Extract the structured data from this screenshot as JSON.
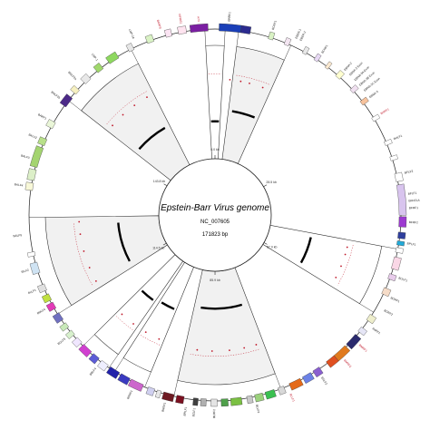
{
  "genome": {
    "title": "Epstein-Barr Virus genome",
    "accession": "NC_007605",
    "length_label": "171823 bp",
    "length_bp": 171823
  },
  "scale_ticks": [
    {
      "pos": 0,
      "label": "0.0 kb"
    },
    {
      "pos": 28500,
      "label": "28.5 kb"
    },
    {
      "pos": 57000,
      "label": "57.0 kb"
    },
    {
      "pos": 85900,
      "label": "85.9 kb"
    },
    {
      "pos": 114500,
      "label": "114.5 kb"
    },
    {
      "pos": 143800,
      "label": "143.8 kb"
    }
  ],
  "sectors": [
    {
      "start": -1500,
      "end": 1500,
      "kind": "narrow",
      "arc_level": 0.55
    },
    {
      "start": 3500,
      "end": 11500,
      "kind": "gray",
      "arc_level": 0.72
    },
    {
      "start": 48000,
      "end": 58000,
      "kind": "white",
      "arc_level": 0.62
    },
    {
      "start": 76000,
      "end": 92000,
      "kind": "gray",
      "arc_level": 0.55
    },
    {
      "start": 96500,
      "end": 101500,
      "kind": "white",
      "arc_level": 0.68
    },
    {
      "start": 102500,
      "end": 107500,
      "kind": "white",
      "arc_level": 0.72
    },
    {
      "start": 113500,
      "end": 128500,
      "kind": "gray",
      "arc_level": 0.6
    },
    {
      "start": 147000,
      "end": 159000,
      "kind": "gray",
      "arc_level": 0.65
    }
  ],
  "genes": [
    {
      "start": 600,
      "end": 3800,
      "color": "#1a3fb8"
    },
    {
      "start": 3800,
      "end": 5200,
      "color": "#2b2b8f"
    },
    {
      "start": 8000,
      "end": 8700,
      "color": "#d9f2c4"
    },
    {
      "start": 10500,
      "end": 11200,
      "color": "#f4e6f2"
    },
    {
      "start": 13500,
      "end": 14100,
      "color": "#e8e8e8"
    },
    {
      "start": 15500,
      "end": 16100,
      "color": "#e8d9f5"
    },
    {
      "start": 17500,
      "end": 18000,
      "color": "#fbe9d0"
    },
    {
      "start": 19500,
      "end": 20300,
      "color": "#ffffd0"
    },
    {
      "start": 22500,
      "end": 23200,
      "color": "#f0e0f0"
    },
    {
      "start": 24800,
      "end": 25500,
      "color": "#f7c29c"
    },
    {
      "start": 27800,
      "end": 28400,
      "color": "#ffffff"
    },
    {
      "start": 31800,
      "end": 32400,
      "color": "#ffffff"
    },
    {
      "start": 34200,
      "end": 34800,
      "color": "#ffffff"
    },
    {
      "start": 36800,
      "end": 38000,
      "color": "#ffffff"
    },
    {
      "start": 38500,
      "end": 43000,
      "color": "#d8c4ee"
    },
    {
      "start": 43200,
      "end": 44700,
      "color": "#9d3ad1"
    },
    {
      "start": 45500,
      "end": 46400,
      "color": "#2f3f9e"
    },
    {
      "start": 46800,
      "end": 47400,
      "color": "#22aad8"
    },
    {
      "start": 47800,
      "end": 48500,
      "color": "#ffffff"
    },
    {
      "start": 49200,
      "end": 51000,
      "color": "#fad7e6"
    },
    {
      "start": 51800,
      "end": 52600,
      "color": "#e8cceb"
    },
    {
      "start": 54000,
      "end": 55000,
      "color": "#f6dcc8"
    },
    {
      "start": 58500,
      "end": 59500,
      "color": "#eeeecc"
    },
    {
      "start": 60800,
      "end": 61600,
      "color": "#e6e6f6"
    },
    {
      "start": 62200,
      "end": 64200,
      "color": "#2a2a6e"
    },
    {
      "start": 64500,
      "end": 66700,
      "color": "#e07a1e"
    },
    {
      "start": 66700,
      "end": 68200,
      "color": "#e05020"
    },
    {
      "start": 69500,
      "end": 70600,
      "color": "#8a5fd0"
    },
    {
      "start": 71000,
      "end": 72400,
      "color": "#6c82e6"
    },
    {
      "start": 72800,
      "end": 74600,
      "color": "#e46a1a"
    },
    {
      "start": 75500,
      "end": 76400,
      "color": "#d8d8d8"
    },
    {
      "start": 77000,
      "end": 78400,
      "color": "#3ac050"
    },
    {
      "start": 78800,
      "end": 80000,
      "color": "#9bd17c"
    },
    {
      "start": 80400,
      "end": 81200,
      "color": "#c8c8c8"
    },
    {
      "start": 82000,
      "end": 83600,
      "color": "#7bc043"
    },
    {
      "start": 84000,
      "end": 85000,
      "color": "#4fa04a"
    },
    {
      "start": 85600,
      "end": 86500,
      "color": "#e4e4e4"
    },
    {
      "start": 87200,
      "end": 88000,
      "color": "#b0b0b0"
    },
    {
      "start": 88400,
      "end": 89100,
      "color": "#404040"
    },
    {
      "start": 90500,
      "end": 91600,
      "color": "#7a1020"
    },
    {
      "start": 92000,
      "end": 93600,
      "color": "#6e1a22"
    },
    {
      "start": 94000,
      "end": 94600,
      "color": "#e8e8e8"
    },
    {
      "start": 95000,
      "end": 96000,
      "color": "#d0d0f0"
    },
    {
      "start": 96800,
      "end": 98800,
      "color": "#cc66cc"
    },
    {
      "start": 99000,
      "end": 100500,
      "color": "#3a3ac0"
    },
    {
      "start": 100800,
      "end": 102400,
      "color": "#2222aa"
    },
    {
      "start": 102800,
      "end": 104000,
      "color": "#eeeeff"
    },
    {
      "start": 104500,
      "end": 105600,
      "color": "#5c5cd6"
    },
    {
      "start": 106000,
      "end": 107600,
      "color": "#d040d0"
    },
    {
      "start": 108000,
      "end": 109000,
      "color": "#f0e6ff"
    },
    {
      "start": 109600,
      "end": 110400,
      "color": "#d7f0cc"
    },
    {
      "start": 111000,
      "end": 111800,
      "color": "#c8e9b8"
    },
    {
      "start": 112400,
      "end": 113600,
      "color": "#7070c0"
    },
    {
      "start": 114400,
      "end": 115400,
      "color": "#e23ab8"
    },
    {
      "start": 115800,
      "end": 116800,
      "color": "#c0e040"
    },
    {
      "start": 117400,
      "end": 118400,
      "color": "#e0e0e0"
    },
    {
      "start": 120200,
      "end": 121800,
      "color": "#cfe3f3"
    },
    {
      "start": 122800,
      "end": 123400,
      "color": "#ffffff"
    },
    {
      "start": 132500,
      "end": 133600,
      "color": "#f8f8d8"
    },
    {
      "start": 134000,
      "end": 135600,
      "color": "#dcefc8"
    },
    {
      "start": 136000,
      "end": 139000,
      "color": "#a4d470"
    },
    {
      "start": 139400,
      "end": 140400,
      "color": "#b8e08a"
    },
    {
      "start": 142200,
      "end": 143200,
      "color": "#eaf6d8"
    },
    {
      "start": 146000,
      "end": 147600,
      "color": "#4c2a88"
    },
    {
      "start": 148400,
      "end": 149200,
      "color": "#f6f0c0"
    },
    {
      "start": 150500,
      "end": 151600,
      "color": "#e8e8e8"
    },
    {
      "start": 153000,
      "end": 154000,
      "color": "#a0d86c"
    },
    {
      "start": 155200,
      "end": 156800,
      "color": "#8ed860"
    },
    {
      "start": 158600,
      "end": 159400,
      "color": "#e6e6e6"
    },
    {
      "start": 161600,
      "end": 162600,
      "color": "#d9f2c4"
    },
    {
      "start": 164500,
      "end": 165400,
      "color": "#fbe4f3"
    },
    {
      "start": 166400,
      "end": 167600,
      "color": "#ffe4f0"
    },
    {
      "start": 168200,
      "end": 170800,
      "color": "#7b1fa2"
    }
  ],
  "gene_labels": [
    {
      "pos": 2000,
      "text": "BNRF1",
      "red": false
    },
    {
      "pos": 8300,
      "text": "BCRF1",
      "red": false
    },
    {
      "pos": 11800,
      "text": "EBER-1",
      "red": false
    },
    {
      "pos": 12500,
      "text": "EBER-2",
      "red": false
    },
    {
      "pos": 16000,
      "text": "BCRF1",
      "red": false
    },
    {
      "pos": 20000,
      "text": "EBNA-2",
      "red": false
    },
    {
      "pos": 21000,
      "text": "EBNA-2 Exon",
      "red": false
    },
    {
      "pos": 22000,
      "text": "EBNA-3A Exon",
      "red": false
    },
    {
      "pos": 23000,
      "text": "EBNA-3B Exon",
      "red": false
    },
    {
      "pos": 24000,
      "text": "EBNA-3C Exon",
      "red": false
    },
    {
      "pos": 25200,
      "text": "EBNA-3",
      "red": false
    },
    {
      "pos": 28000,
      "text": "BHRF1",
      "red": true
    },
    {
      "pos": 32000,
      "text": "BHLF1",
      "red": false
    },
    {
      "pos": 37000,
      "text": "BFLF2",
      "red": false
    },
    {
      "pos": 40000,
      "text": "BFLF1",
      "red": false
    },
    {
      "pos": 41000,
      "text": "BFRF1A",
      "red": false
    },
    {
      "pos": 42000,
      "text": "BFRF1",
      "red": false
    },
    {
      "pos": 44000,
      "text": "BFRF2",
      "red": false
    },
    {
      "pos": 47000,
      "text": "BPLF1",
      "red": false
    },
    {
      "pos": 52000,
      "text": "BOLF1",
      "red": false
    },
    {
      "pos": 55000,
      "text": "BORF1",
      "red": false
    },
    {
      "pos": 57000,
      "text": "BORF2",
      "red": false
    },
    {
      "pos": 60000,
      "text": "BaRF1",
      "red": false
    },
    {
      "pos": 63000,
      "text": "BMRF1",
      "red": true
    },
    {
      "pos": 66000,
      "text": "BMRF2",
      "red": true
    },
    {
      "pos": 70000,
      "text": "BSLF2",
      "red": false
    },
    {
      "pos": 75000,
      "text": "BLLF1",
      "red": true
    },
    {
      "pos": 80000,
      "text": "BLLF3",
      "red": false
    },
    {
      "pos": 86000,
      "text": "BLRF2",
      "red": false
    },
    {
      "pos": 88800,
      "text": "BZLF1",
      "red": false
    },
    {
      "pos": 90000,
      "text": "BRLF1",
      "red": false
    },
    {
      "pos": 93000,
      "text": "BRRF1",
      "red": false
    },
    {
      "pos": 98000,
      "text": "BKRF1",
      "red": false
    },
    {
      "pos": 104000,
      "text": "BBLF4",
      "red": false
    },
    {
      "pos": 110000,
      "text": "BGLF5",
      "red": false
    },
    {
      "pos": 115000,
      "text": "BDLF4",
      "red": false
    },
    {
      "pos": 118000,
      "text": "BcLF1",
      "red": false
    },
    {
      "pos": 121000,
      "text": "BILF2",
      "red": false
    },
    {
      "pos": 126000,
      "text": "BALF5",
      "red": false
    },
    {
      "pos": 133000,
      "text": "BALF4",
      "red": false
    },
    {
      "pos": 137000,
      "text": "BALF3",
      "red": false
    },
    {
      "pos": 140000,
      "text": "BALF2",
      "red": false
    },
    {
      "pos": 143000,
      "text": "BARF1",
      "red": false
    },
    {
      "pos": 146500,
      "text": "BNLF2b",
      "red": false
    },
    {
      "pos": 150000,
      "text": "BNLF2a",
      "red": false
    },
    {
      "pos": 154000,
      "text": "LMP-1",
      "red": false
    },
    {
      "pos": 160000,
      "text": "LMP-2A",
      "red": false
    },
    {
      "pos": 164000,
      "text": "BARF0",
      "red": true
    },
    {
      "pos": 167000,
      "text": "RPMS1",
      "red": true
    },
    {
      "pos": 169500,
      "text": "A73",
      "red": true
    }
  ],
  "track_marks": [
    {
      "pos": 3000
    },
    {
      "pos": 5200
    },
    {
      "pos": 7000
    },
    {
      "pos": 9800
    },
    {
      "pos": 49500
    },
    {
      "pos": 51000
    },
    {
      "pos": 53500
    },
    {
      "pos": 56000
    },
    {
      "pos": 77500
    },
    {
      "pos": 80000
    },
    {
      "pos": 83000
    },
    {
      "pos": 86500
    },
    {
      "pos": 89500
    },
    {
      "pos": 97500
    },
    {
      "pos": 100500
    },
    {
      "pos": 103500
    },
    {
      "pos": 106500
    },
    {
      "pos": 115000
    },
    {
      "pos": 118000
    },
    {
      "pos": 121500
    },
    {
      "pos": 125000
    },
    {
      "pos": 127500
    },
    {
      "pos": 148500
    },
    {
      "pos": 151500
    },
    {
      "pos": 154500
    },
    {
      "pos": 157500
    }
  ]
}
